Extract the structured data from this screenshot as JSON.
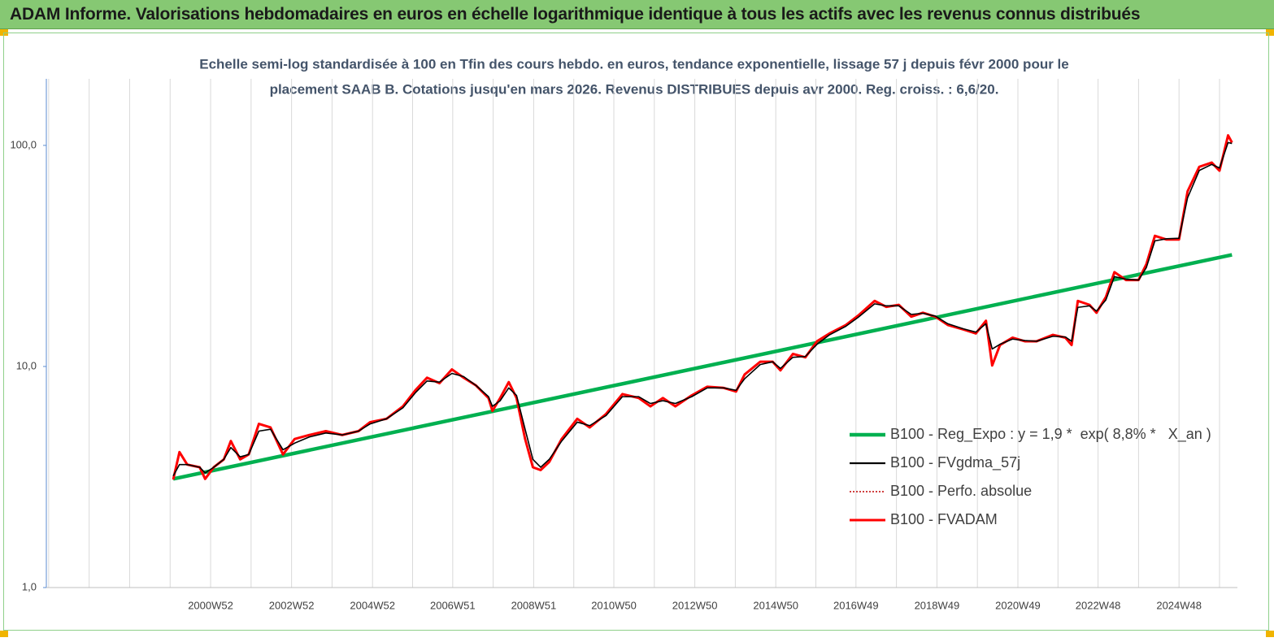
{
  "header": {
    "title": "ADAM Informe. Valorisations hebdomadaires en euros en échelle logarithmique identique à tous les actifs avec les revenus connus distribués"
  },
  "chart_data": {
    "type": "line",
    "title": [
      "Echelle semi-log standardisée à 100 en Tfin des cours hebdo. en euros, tendance exponentielle, lissage 57 j depuis févr 2000 pour le",
      "placement SAAB B.  Cotations jusqu'en mars 2026. Revenus DISTRIBUES depuis avr 2000. Reg. croiss. : 6,6/20."
    ],
    "log_scale": true,
    "grid": true,
    "legend": "right",
    "xlim": [
      "1996W49",
      "2026W19"
    ],
    "xticks": [
      "2000W52",
      "2002W52",
      "2004W52",
      "2006W51",
      "2008W51",
      "2010W50",
      "2012W50",
      "2014W50",
      "2016W49",
      "2018W49",
      "2020W49",
      "2022W48",
      "2024W48"
    ],
    "ylim": [
      1,
      200
    ],
    "yticks": [
      {
        "value": 1,
        "label": "1,0"
      },
      {
        "value": 10,
        "label": "10,0"
      },
      {
        "value": 100,
        "label": "100,0"
      }
    ],
    "x": [
      "2000W04",
      "2000W12",
      "2000W22",
      "2000W38",
      "2000W45",
      "2001W04",
      "2001W17",
      "2001W26",
      "2001W38",
      "2001W49",
      "2002W10",
      "2002W25",
      "2002W41",
      "2003W04",
      "2003W23",
      "2003W44",
      "2004W13",
      "2004W34",
      "2004W49",
      "2005W18",
      "2005W39",
      "2006W03",
      "2006W18",
      "2006W34",
      "2006W50",
      "2007W13",
      "2007W29",
      "2007W45",
      "2007W50",
      "2008W08",
      "2008W19",
      "2008W29",
      "2008W40",
      "2008W50",
      "2009W08",
      "2009W19",
      "2009W35",
      "2010W03",
      "2010W19",
      "2010W40",
      "2011W09",
      "2011W30",
      "2011W45",
      "2012W09",
      "2012W25",
      "2012W46",
      "2013W14",
      "2013W35",
      "2013W51",
      "2014W10",
      "2014W30",
      "2014W46",
      "2015W04",
      "2015W20",
      "2015W36",
      "2015W51",
      "2016W15",
      "2016W36",
      "2016W52",
      "2017W21",
      "2017W36",
      "2017W52",
      "2018W16",
      "2018W31",
      "2018W47",
      "2019W11",
      "2019W31",
      "2019W47",
      "2020W08",
      "2020W16",
      "2020W26",
      "2020W42",
      "2021W06",
      "2021W21",
      "2021W42",
      "2022W06",
      "2022W14",
      "2022W22",
      "2022W37",
      "2022W46",
      "2023W06",
      "2023W17",
      "2023W32",
      "2023W48",
      "2024W06",
      "2024W17",
      "2024W32",
      "2024W48",
      "2025W07",
      "2025W22",
      "2025W38",
      "2025W48",
      "2026W07",
      "2026W12"
    ],
    "series": [
      {
        "name": "B100 - Reg_Expo : y = 1,9 *  exp( 8,8% *   X_an )",
        "color": "#00b050",
        "x": [
          "2000W04",
          "2026W12"
        ],
        "values": [
          3.1,
          32
        ]
      },
      {
        "name": "B100 - FVgdma_57j",
        "color": "#000000",
        "values": [
          3.2,
          3.6,
          3.6,
          3.5,
          3.3,
          3.5,
          3.8,
          4.3,
          3.9,
          4.0,
          5.1,
          5.2,
          4.2,
          4.5,
          4.8,
          5.0,
          4.9,
          5.1,
          5.5,
          5.8,
          6.5,
          7.6,
          8.6,
          8.5,
          9.3,
          9.0,
          8.2,
          7.3,
          6.6,
          7.0,
          8.0,
          7.4,
          5.2,
          3.8,
          3.5,
          3.8,
          4.6,
          5.6,
          5.4,
          6.0,
          7.3,
          7.3,
          6.8,
          7.0,
          6.8,
          7.3,
          8.0,
          8.0,
          7.8,
          8.8,
          10.2,
          10.5,
          9.8,
          11.0,
          11.1,
          12.6,
          13.9,
          15.2,
          16.7,
          19.2,
          18.8,
          18.8,
          17.2,
          17.4,
          16.9,
          15.6,
          14.8,
          14.3,
          15.6,
          12.0,
          12.6,
          13.3,
          13.1,
          13.0,
          13.7,
          13.6,
          13.0,
          18.5,
          18.8,
          17.8,
          20.0,
          25.5,
          24.8,
          24.6,
          28.0,
          37.0,
          37.8,
          38.0,
          58.0,
          77.0,
          82.0,
          79.0,
          103,
          102
        ]
      },
      {
        "name": "B100 - Perfo. absolue",
        "color": "#c00000",
        "dotted": true,
        "values": [
          3.08,
          4.1,
          3.6,
          3.5,
          3.1,
          3.5,
          3.8,
          4.6,
          3.8,
          4.0,
          5.5,
          5.3,
          4.0,
          4.7,
          4.9,
          5.1,
          4.9,
          5.1,
          5.6,
          5.8,
          6.6,
          7.8,
          8.9,
          8.4,
          9.7,
          8.9,
          8.2,
          7.2,
          6.3,
          7.2,
          8.5,
          7.2,
          4.7,
          3.5,
          3.4,
          3.7,
          4.7,
          5.8,
          5.3,
          6.1,
          7.5,
          7.2,
          6.6,
          7.2,
          6.6,
          7.4,
          8.1,
          8.0,
          7.7,
          9.2,
          10.5,
          10.5,
          9.6,
          11.4,
          11.0,
          13.0,
          14.1,
          15.4,
          17.0,
          19.8,
          18.6,
          19.0,
          16.8,
          17.5,
          16.8,
          15.4,
          14.7,
          14.1,
          16.1,
          10.1,
          12.5,
          13.5,
          13.0,
          13.0,
          13.9,
          13.5,
          12.5,
          19.8,
          19.0,
          17.5,
          20.6,
          26.7,
          24.6,
          24.6,
          29.0,
          39.0,
          37.5,
          37.5,
          62.0,
          80.0,
          83.6,
          76.8,
          111,
          103
        ]
      },
      {
        "name": "B100 - FVADAM",
        "color": "#ff0000",
        "values": [
          3.08,
          4.1,
          3.6,
          3.5,
          3.1,
          3.5,
          3.8,
          4.6,
          3.8,
          4.0,
          5.5,
          5.3,
          4.0,
          4.7,
          4.9,
          5.1,
          4.9,
          5.1,
          5.6,
          5.8,
          6.6,
          7.8,
          8.9,
          8.4,
          9.7,
          8.9,
          8.2,
          7.2,
          6.3,
          7.2,
          8.5,
          7.2,
          4.7,
          3.5,
          3.4,
          3.7,
          4.7,
          5.8,
          5.3,
          6.1,
          7.5,
          7.2,
          6.6,
          7.2,
          6.6,
          7.4,
          8.1,
          8.0,
          7.7,
          9.2,
          10.5,
          10.5,
          9.6,
          11.4,
          11.0,
          13.0,
          14.1,
          15.4,
          17.0,
          19.8,
          18.6,
          19.0,
          16.8,
          17.5,
          16.8,
          15.4,
          14.7,
          14.1,
          16.1,
          10.1,
          12.5,
          13.5,
          13.0,
          13.0,
          13.9,
          13.5,
          12.5,
          19.8,
          19.0,
          17.5,
          20.6,
          26.7,
          24.6,
          24.6,
          29.0,
          39.0,
          37.5,
          37.5,
          62.0,
          80.0,
          83.6,
          76.8,
          111,
          103
        ]
      }
    ]
  }
}
